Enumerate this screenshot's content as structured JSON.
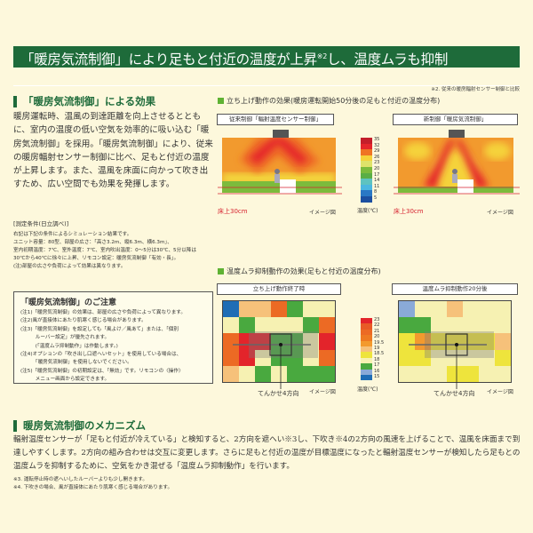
{
  "header": {
    "title": "「暖房気流制御」により足もと付近の温度が上昇",
    "title_sup": "※2",
    "title_end": "し、温度ムラも抑制",
    "note": "※2. 従来の暖房輻射センサー制御と比較"
  },
  "effect": {
    "heading": "「暖房気流制御」による効果",
    "body": "暖房運転時、温風の到達距離を向上させるとともに、室内の温度の低い空気を効率的に吸い込む「暖房気流制御」を採用。「暖房気流制御」により、従来の暖房輻射センサー制御に比べ、足もと付近の温度が上昇します。また、温風を床面に向かって吹き出すため、広い空間でも効果を発揮します。"
  },
  "conditions": {
    "title": "[測定条件(日立調べ)]",
    "lines": [
      "右記は下記の条件によるシミュレーション結果です。",
      "ユニット容量：80型、部屋の広さ：「高さ3.2m、縦6.3m、横6.3m」、",
      "室内初期温度：7℃、室外温度：7℃、室内吹出温度：0～5分は30℃、5分以降は",
      "30℃から40℃に徐々に上昇、リモコン設定：暖房気流制御「有効・長」。",
      "(注)部屋の広さや負荷によって効果は異なります。"
    ]
  },
  "caution": {
    "title": "「暖房気流制御」のご注意",
    "lines": [
      "(注1)「暖房気流制御」の効果は、部屋の広さや負荷によって異なります。",
      "(注2)風が直接体にあたり肌寒く感じる場合があります。",
      "(注3)「暖房気流制御」を設定しても「風よけ／風あて」または、「個別",
      "　　　ルーバー設定」が優先されます。",
      "　　　(「温度ムラ抑制動作」は作動します。)",
      "(注4)オプションの「吹き出し口遮へいセット」を使用している場合は、",
      "　　　「暖房気流制御」を使用しないでください。",
      "(注5)「暖房気流制御」の初期設定は、「無効」です。リモコンの〈操作〉",
      "　　　メニュー画面から設定できます。"
    ]
  },
  "startup": {
    "heading": "立ち上げ動作の効果(暖房運転開始50分後の足もと付近の温度分布)",
    "left_label": "従来制御「輻射温度センサー制御」",
    "right_label": "新制御「暖房気流制御」",
    "floor_label": "床上30cm",
    "image_label": "イメージ図",
    "legend_title": "温度(℃)",
    "legend": [
      {
        "v": "35",
        "c": "#c41e2a"
      },
      {
        "v": "32",
        "c": "#e5262b"
      },
      {
        "v": "29",
        "c": "#ef7424"
      },
      {
        "v": "26",
        "c": "#f5d23a"
      },
      {
        "v": "23",
        "c": "#dfe36a"
      },
      {
        "v": "20",
        "c": "#7cbb3c"
      },
      {
        "v": "17",
        "c": "#5aae45"
      },
      {
        "v": "14",
        "c": "#5ec3c0"
      },
      {
        "v": "11",
        "c": "#4bb7e0"
      },
      {
        "v": "8",
        "c": "#2a78c5"
      },
      {
        "v": "5",
        "c": "#1c4fa0"
      }
    ]
  },
  "unevenness": {
    "heading": "温度ムラ抑制動作の効果(足もと付近の温度分布)",
    "left_label": "立ち上げ動作終了時",
    "right_label": "温度ムラ抑制動作20分後",
    "unit_label": "てんかせ4方向",
    "image_label": "イメージ図",
    "legend_title": "温度(℃)",
    "legend": [
      {
        "v": "23",
        "c": "#e3242b"
      },
      {
        "v": "22",
        "c": "#e85a26"
      },
      {
        "v": "21",
        "c": "#ec6a24"
      },
      {
        "v": "20",
        "c": "#ee7a22"
      },
      {
        "v": "19.5",
        "c": "#f39a2e"
      },
      {
        "v": "19",
        "c": "#f6c17a"
      },
      {
        "v": "18.5",
        "c": "#eee43c"
      },
      {
        "v": "18",
        "c": "#f6f1b2"
      },
      {
        "v": "17",
        "c": "#49a93f"
      },
      {
        "v": "16",
        "c": "#8aaad8"
      },
      {
        "v": "15",
        "c": "#1f6db5"
      }
    ],
    "left_grid": [
      [
        "15",
        "19",
        "19",
        "21",
        "17",
        "18",
        "18"
      ],
      [
        "18",
        "17",
        "18",
        "18",
        "18",
        "17",
        "21"
      ],
      [
        "21",
        "23",
        "23",
        "17",
        "17",
        "18",
        "23"
      ],
      [
        "21",
        "23",
        "18",
        "17",
        "17",
        "18",
        "21"
      ],
      [
        "19",
        "18",
        "17",
        "18",
        "17",
        "17",
        "17"
      ]
    ],
    "right_grid": [
      [
        "16",
        "18",
        "18",
        "19",
        "18",
        "18",
        "18"
      ],
      [
        "17",
        "17",
        "18",
        "18",
        "18",
        "18",
        "18"
      ],
      [
        "18.5",
        "19.5",
        "18.5",
        "18.5",
        "18.5",
        "18.5",
        "19"
      ],
      [
        "18.5",
        "18.5",
        "18",
        "18",
        "18",
        "18",
        "18.5"
      ],
      [
        "18",
        "18",
        "18",
        "18.5",
        "18.5",
        "18",
        "18"
      ]
    ]
  },
  "mechanism": {
    "heading": "暖房気流制御のメカニズム",
    "body": "輻射温度センサーが「足もと付近が冷えている」と検知すると、2方向を遮へい※3し、下吹き※4の2方向の風速を上げることで、温風を床面まで到達しやすくします。2方向の組み合わせは交互に変更します。さらに足もと付近の温度が目標温度になったと輻射温度センサーが検知したら足もとの温度ムラを抑制するために、空気をかき混ぜる「温度ムラ抑制動作」を行います。",
    "notes": [
      "※3. 運転停止時の遮へいしたルーバーよりも少し開きます。",
      "※4. 下吹きの場合、風が直接体にあたり肌寒く感じる場合があります。"
    ]
  }
}
